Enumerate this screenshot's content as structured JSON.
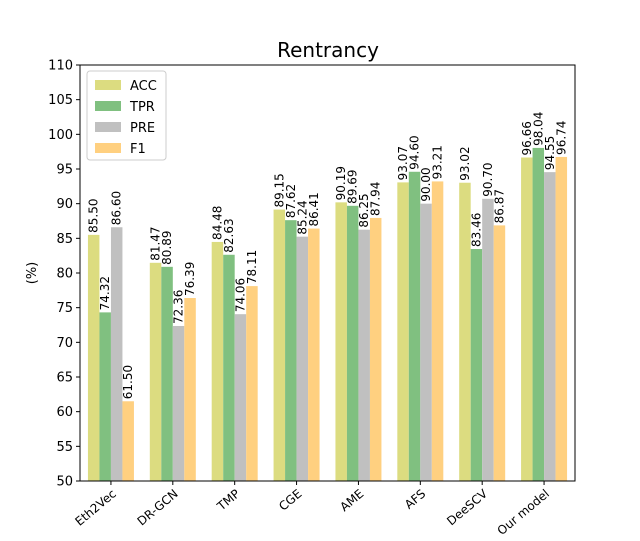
{
  "chart_data": {
    "type": "bar",
    "title": "Rentrancy",
    "xlabel": "",
    "ylabel": "(%)",
    "ylim": [
      50,
      110
    ],
    "yticks": [
      50,
      55,
      60,
      65,
      70,
      75,
      80,
      85,
      90,
      95,
      100,
      105,
      110
    ],
    "grid": false,
    "legend_position": "top-left",
    "categories": [
      "Eth2Vec",
      "DR-GCN",
      "TMP",
      "CGE",
      "AME",
      "AFS",
      "DeeSCV",
      "Our model"
    ],
    "series": [
      {
        "name": "ACC",
        "color": "#dcdc80",
        "values": [
          85.5,
          81.47,
          84.48,
          89.15,
          90.19,
          93.07,
          93.02,
          96.66
        ],
        "labels": [
          "85.50",
          "81.47",
          "84.48",
          "89.15",
          "90.19",
          "93.07",
          "93.02",
          "96.66"
        ]
      },
      {
        "name": "TPR",
        "color": "#80c080",
        "values": [
          74.32,
          80.89,
          82.63,
          87.62,
          89.69,
          94.6,
          83.46,
          98.04
        ],
        "labels": [
          "74.32",
          "80.89",
          "82.63",
          "87.62",
          "89.69",
          "94.60",
          "83.46",
          "98.04"
        ]
      },
      {
        "name": "PRE",
        "color": "#c0c0c0",
        "values": [
          86.6,
          72.36,
          74.06,
          85.24,
          86.25,
          90.0,
          90.7,
          94.55
        ],
        "labels": [
          "86.60",
          "72.36",
          "74.06",
          "85.24",
          "86.25",
          "90.00",
          "90.70",
          "94.55"
        ]
      },
      {
        "name": "F1",
        "color": "#ffd080",
        "values": [
          61.5,
          76.39,
          78.11,
          86.41,
          87.94,
          93.21,
          86.87,
          96.74
        ],
        "labels": [
          "61.50",
          "76.39",
          "78.11",
          "86.41",
          "87.94",
          "93.21",
          "86.87",
          "96.74"
        ]
      }
    ]
  }
}
